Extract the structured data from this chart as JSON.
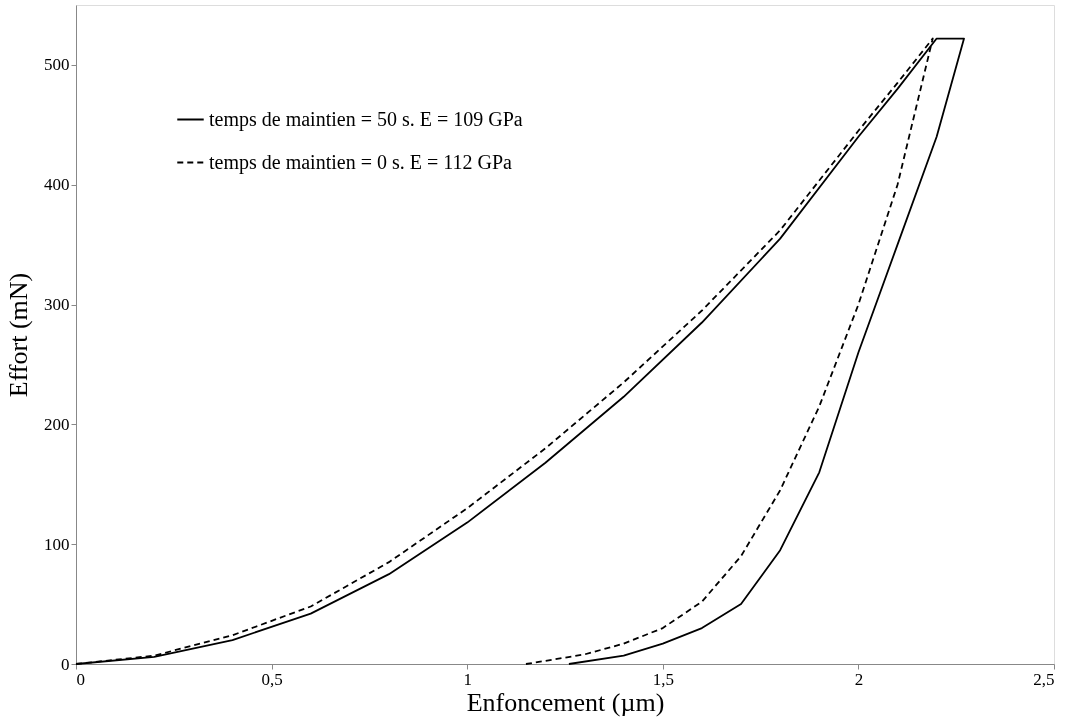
{
  "chart_data": {
    "type": "line",
    "xlabel": "Enfoncement (µm)",
    "ylabel": "Effort (mN)",
    "xlim": [
      0,
      2.5
    ],
    "xticks": [
      0,
      {
        "value": 0.5,
        "label": "0,5"
      },
      1,
      {
        "value": 1.5,
        "label": "1,5"
      },
      2,
      {
        "value": 2.5,
        "label": "2,5"
      }
    ],
    "ylim": [
      0,
      550
    ],
    "yticks": [
      0,
      100,
      200,
      300,
      400,
      500
    ],
    "grid": false,
    "legend": "top left",
    "marker": "none",
    "series": [
      {
        "name": "temps de maintien = 50 s. E = 109 GPa",
        "color": "#000000",
        "line_style": "solid",
        "x": [
          0,
          0.2,
          0.4,
          0.6,
          0.8,
          1,
          1.2,
          1.4,
          1.6,
          1.8,
          2,
          2.1,
          2.2,
          2.27,
          2.2,
          2.1,
          2,
          1.9,
          1.8,
          1.7,
          1.6,
          1.5,
          1.4,
          1.26
        ],
        "values": [
          0,
          6,
          20,
          42,
          75,
          118,
          168,
          223,
          285,
          355,
          440,
          480,
          522,
          522,
          440,
          350,
          260,
          160,
          95,
          50,
          30,
          17,
          7,
          0
        ]
      },
      {
        "name": "temps de maintien = 0 s. E = 112 GPa",
        "color": "#000000",
        "line_style": "dashed",
        "x": [
          0,
          0.2,
          0.4,
          0.6,
          0.8,
          1,
          1.2,
          1.4,
          1.6,
          1.8,
          2,
          2.1,
          2.19,
          2.1,
          2,
          1.9,
          1.8,
          1.7,
          1.6,
          1.5,
          1.4,
          1.3,
          1.15
        ],
        "values": [
          0,
          7,
          24,
          48,
          85,
          130,
          180,
          235,
          295,
          362,
          445,
          485,
          522,
          400,
          300,
          215,
          145,
          90,
          52,
          30,
          17,
          8,
          0
        ]
      }
    ]
  }
}
